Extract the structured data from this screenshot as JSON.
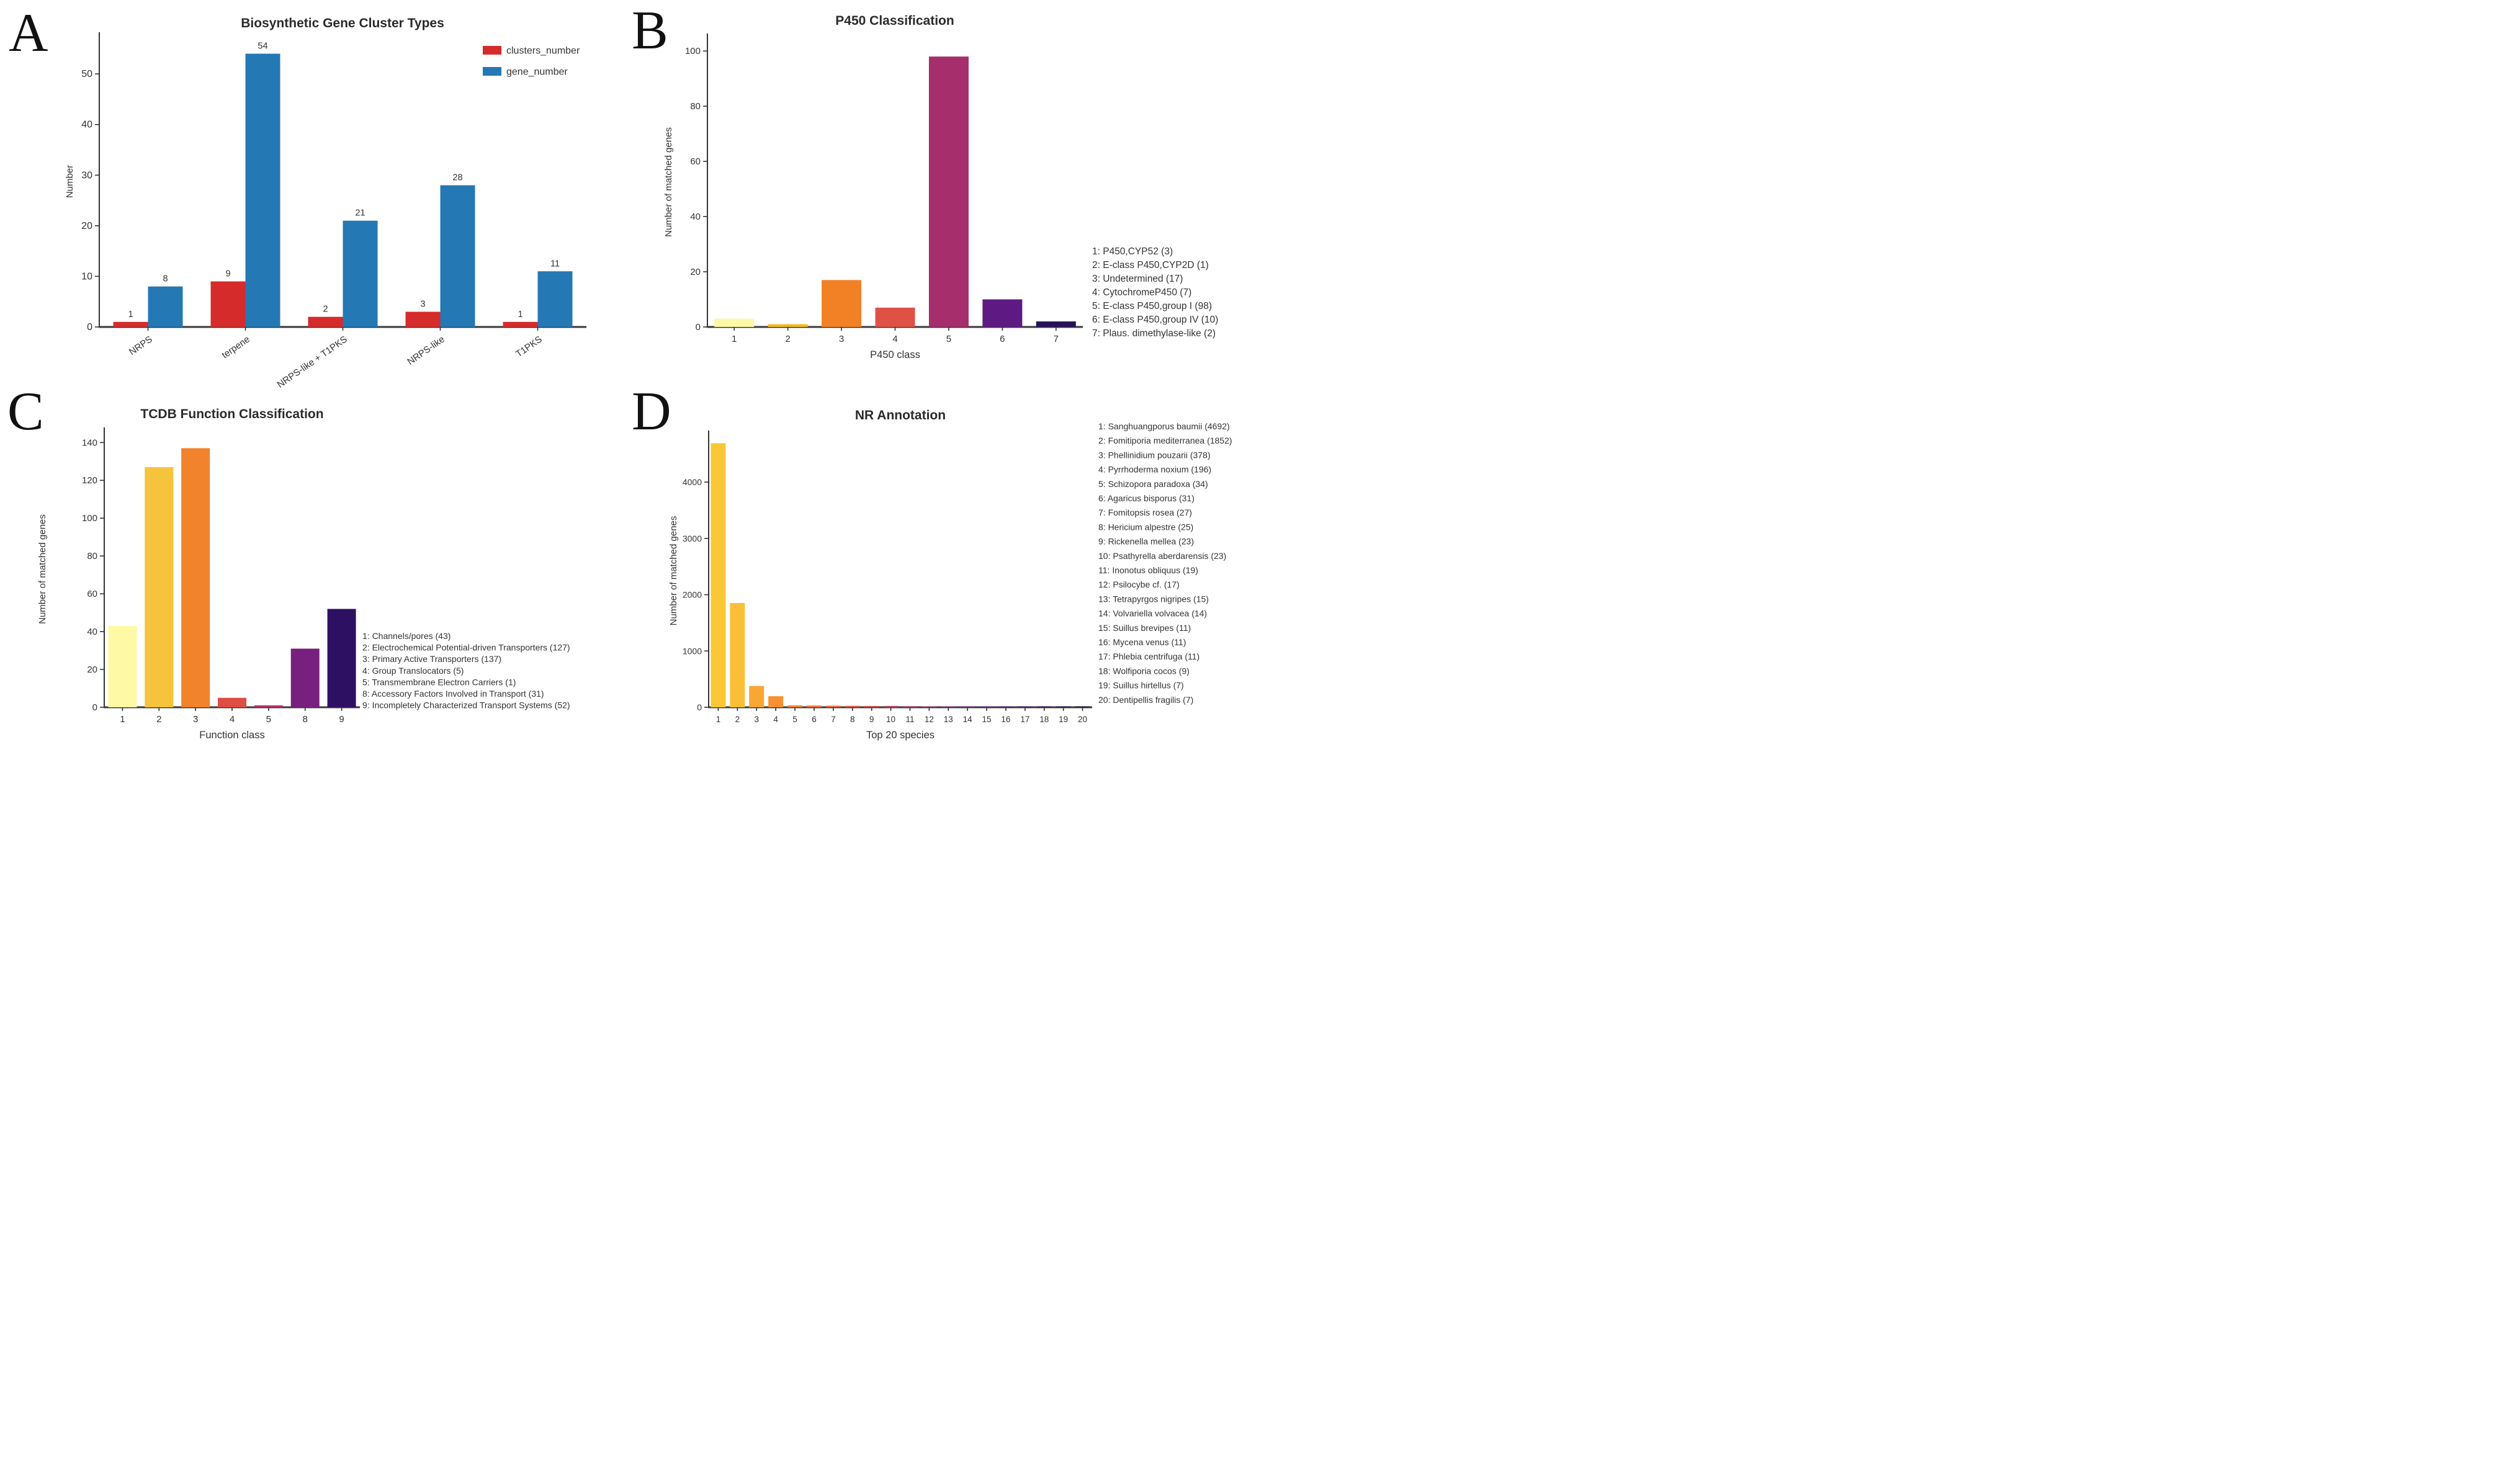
{
  "chart_data": [
    {
      "panel_letter": "A",
      "type": "bar",
      "grouped": true,
      "title": "Biosynthetic Gene Cluster Types",
      "categories": [
        "NRPS",
        "terpene",
        "NRPS-like + T1PKS",
        "NRPS-like",
        "T1PKS"
      ],
      "series": [
        {
          "name": "clusters_number",
          "color": "#d62b2b",
          "values": [
            1,
            9,
            2,
            3,
            1
          ]
        },
        {
          "name": "gene_number",
          "color": "#2478b4",
          "values": [
            8,
            54,
            21,
            28,
            11
          ]
        }
      ],
      "xlabel": "",
      "ylabel": "Number",
      "ylim": [
        0,
        57.5
      ],
      "yticks": [
        0,
        10,
        20,
        30,
        40,
        50
      ],
      "bar_value_labels": true,
      "legend_position": "top-right",
      "grid": false
    },
    {
      "panel_letter": "B",
      "type": "bar",
      "title": "P450 Classification",
      "categories": [
        "1",
        "2",
        "3",
        "4",
        "5",
        "6",
        "7"
      ],
      "values": [
        3,
        1,
        17,
        7,
        98,
        10,
        2
      ],
      "colors": [
        "#fdf9a4",
        "#f3b929",
        "#f28126",
        "#e05145",
        "#a62e6c",
        "#5e1a82",
        "#261356"
      ],
      "xlabel": "P450 class",
      "ylabel": "Number of matched genes",
      "ylim": [
        0,
        105
      ],
      "yticks": [
        0,
        20,
        40,
        60,
        80,
        100
      ],
      "legend_position": "right-text",
      "annotations": [
        "1: P450,CYP52 (3)",
        "2: E-class P450,CYP2D (1)",
        "3: Undetermined (17)",
        "4: CytochromeP450 (7)",
        "5: E-class P450,group I (98)",
        "6: E-class P450,group IV (10)",
        "7: Plaus. dimethylase-like (2)"
      ],
      "grid": false
    },
    {
      "panel_letter": "C",
      "type": "bar",
      "title": "TCDB Function Classification",
      "categories": [
        "1",
        "2",
        "3",
        "4",
        "5",
        "8",
        "9"
      ],
      "values": [
        43,
        127,
        137,
        5,
        1,
        31,
        52
      ],
      "colors": [
        "#fdf9a4",
        "#f6c33c",
        "#f0832b",
        "#dd4f43",
        "#b63069",
        "#77207f",
        "#2e1062"
      ],
      "xlabel": "Function class",
      "ylabel": "Number of matched genes",
      "ylim": [
        0,
        146
      ],
      "yticks": [
        0,
        20,
        40,
        60,
        80,
        100,
        120,
        140
      ],
      "legend_position": "right-text",
      "annotations": [
        "1: Channels/pores (43)",
        "2: Electrochemical Potential-driven Transporters (127)",
        "3: Primary Active Transporters (137)",
        "4: Group Translocators (5)",
        "5: Transmembrane Electron Carriers (1)",
        "8: Accessory Factors Involved in Transport (31)",
        "9: Incompletely Characterized Transport Systems (52)"
      ],
      "grid": false
    },
    {
      "panel_letter": "D",
      "type": "bar",
      "title": "NR Annotation",
      "categories": [
        "1",
        "2",
        "3",
        "4",
        "5",
        "6",
        "7",
        "8",
        "9",
        "10",
        "11",
        "12",
        "13",
        "14",
        "15",
        "16",
        "17",
        "18",
        "19",
        "20"
      ],
      "values": [
        4692,
        1852,
        378,
        196,
        34,
        31,
        27,
        25,
        23,
        23,
        19,
        17,
        15,
        14,
        11,
        11,
        11,
        9,
        7,
        7
      ],
      "colors": [
        "#fcc736",
        "#fbbf37",
        "#f9a733",
        "#f89030",
        "#f28434",
        "#ee7838",
        "#e5693f",
        "#d85b48",
        "#c94f52",
        "#b8465c",
        "#a63e64",
        "#93366b",
        "#7f2d72",
        "#6b2478",
        "#571d77",
        "#44176e",
        "#341261",
        "#270e52",
        "#1d0a43",
        "#150736"
      ],
      "xlabel": "Top 20 species",
      "ylabel": "Number of matched genes",
      "ylim": [
        0,
        4850
      ],
      "yticks": [
        0,
        1000,
        2000,
        3000,
        4000
      ],
      "legend_position": "right-text",
      "annotations": [
        "1: Sanghuangporus baumii (4692)",
        "2: Fomitiporia mediterranea (1852)",
        "3: Phellinidium pouzarii (378)",
        "4: Pyrrhoderma noxium (196)",
        "5: Schizopora paradoxa (34)",
        "6: Agaricus bisporus (31)",
        "7: Fomitopsis rosea (27)",
        "8: Hericium alpestre (25)",
        "9: Rickenella mellea (23)",
        "10: Psathyrella aberdarensis (23)",
        "11: Inonotus obliquus (19)",
        "12: Psilocybe cf. (17)",
        "13: Tetrapyrgos nigripes (15)",
        "14: Volvariella volvacea (14)",
        "15: Suillus brevipes (11)",
        "16: Mycena venus (11)",
        "17: Phlebia centrifuga (11)",
        "18: Wolfiporia cocos (9)",
        "19: Suillus hirtellus (7)",
        "20: Dentipellis fragilis (7)"
      ],
      "grid": false
    }
  ]
}
